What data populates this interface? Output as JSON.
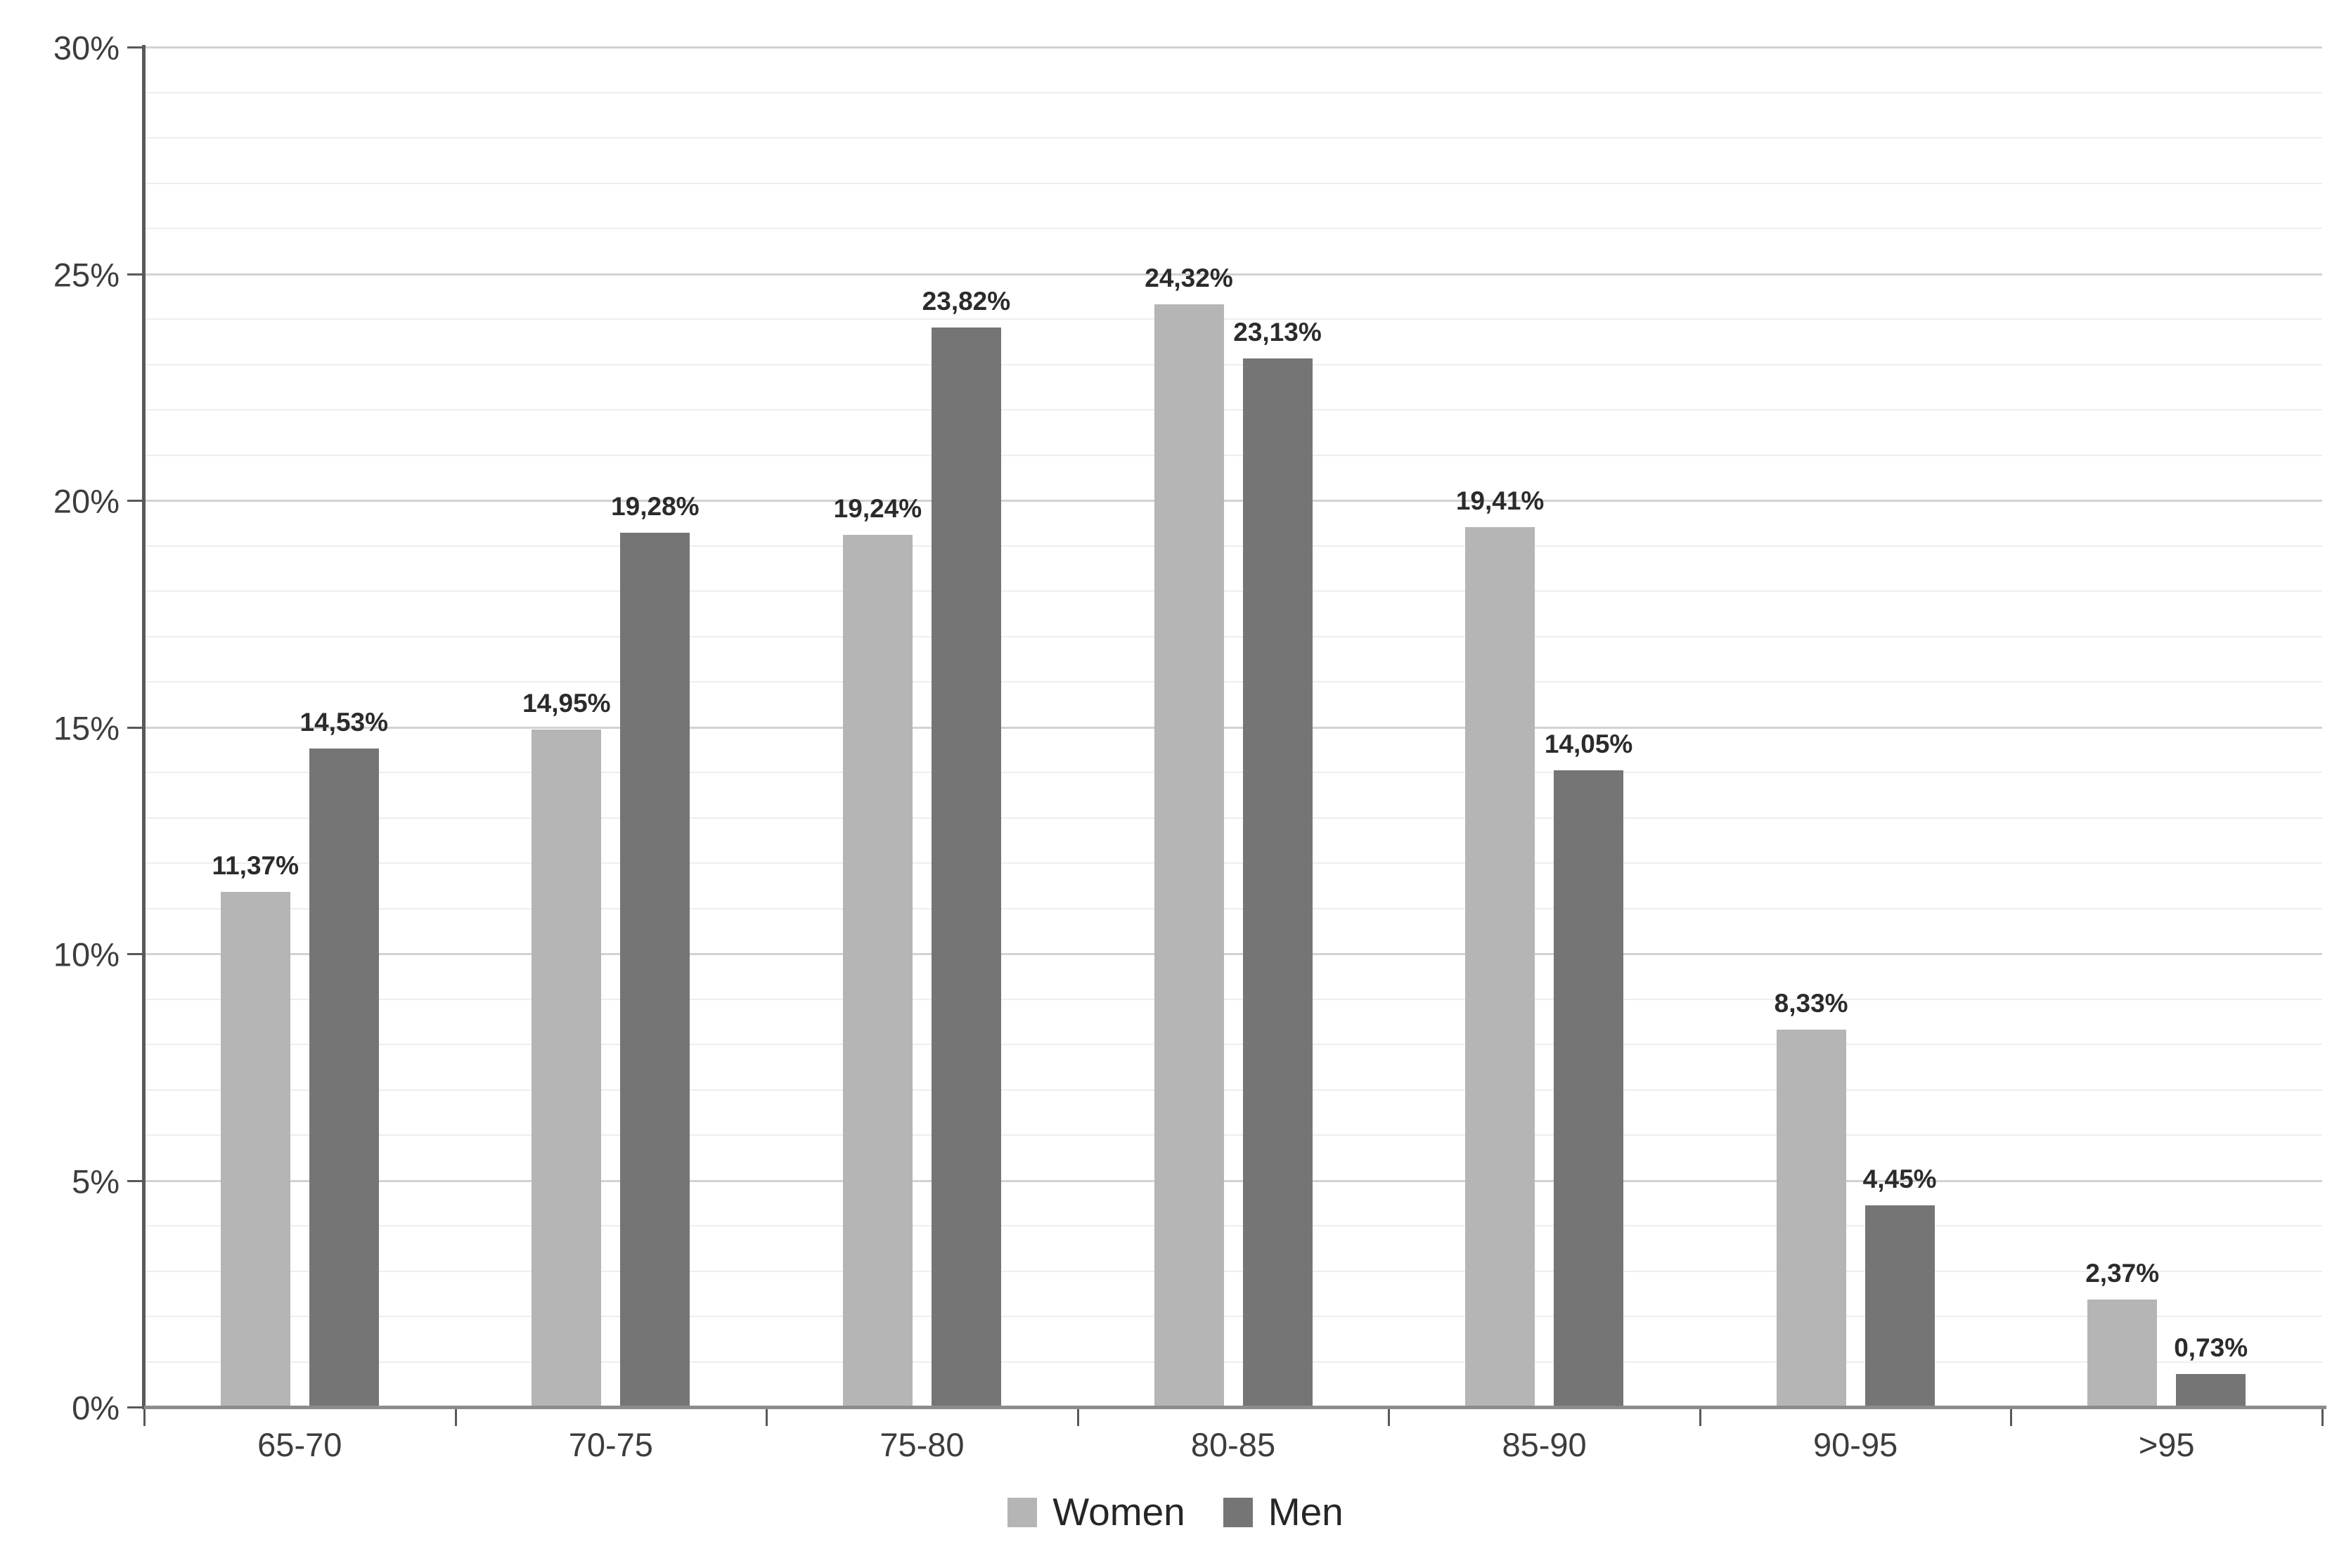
{
  "chart_data": {
    "type": "bar",
    "title": "",
    "xlabel": "",
    "ylabel": "",
    "categories": [
      "65-70",
      "70-75",
      "75-80",
      "80-85",
      "85-90",
      "90-95",
      ">95"
    ],
    "series": [
      {
        "name": "Women",
        "color": "#b5b5b5",
        "values": [
          11.37,
          14.95,
          19.24,
          24.32,
          19.41,
          8.33,
          2.37
        ],
        "labels": [
          "11,37%",
          "14,95%",
          "19,24%",
          "24,32%",
          "19,41%",
          "8,33%",
          "2,37%"
        ]
      },
      {
        "name": "Men",
        "color": "#757575",
        "values": [
          14.53,
          19.28,
          23.82,
          23.13,
          14.05,
          4.45,
          0.73
        ],
        "labels": [
          "14,53%",
          "19,28%",
          "23,82%",
          "23,13%",
          "14,05%",
          "4,45%",
          "0,73%"
        ]
      }
    ],
    "ylim": [
      0,
      30
    ],
    "y_major_step": 5,
    "y_minor_step": 1,
    "y_tick_labels": [
      "0%",
      "5%",
      "10%",
      "15%",
      "20%",
      "25%",
      "30%"
    ],
    "grid": "major-and-minor-horizontal",
    "legend_position": "bottom-center",
    "colors": {
      "background": "#ffffff",
      "major_gridline": "#d2d2d2",
      "minor_gridline": "#eeeeee",
      "y_axis_line": "#595959",
      "x_axis_line": "#8c8c8c",
      "tick": "#595959",
      "tick_label": "#3d3d3d",
      "data_label": "#2b2b2b",
      "legend_text": "#262626"
    }
  }
}
